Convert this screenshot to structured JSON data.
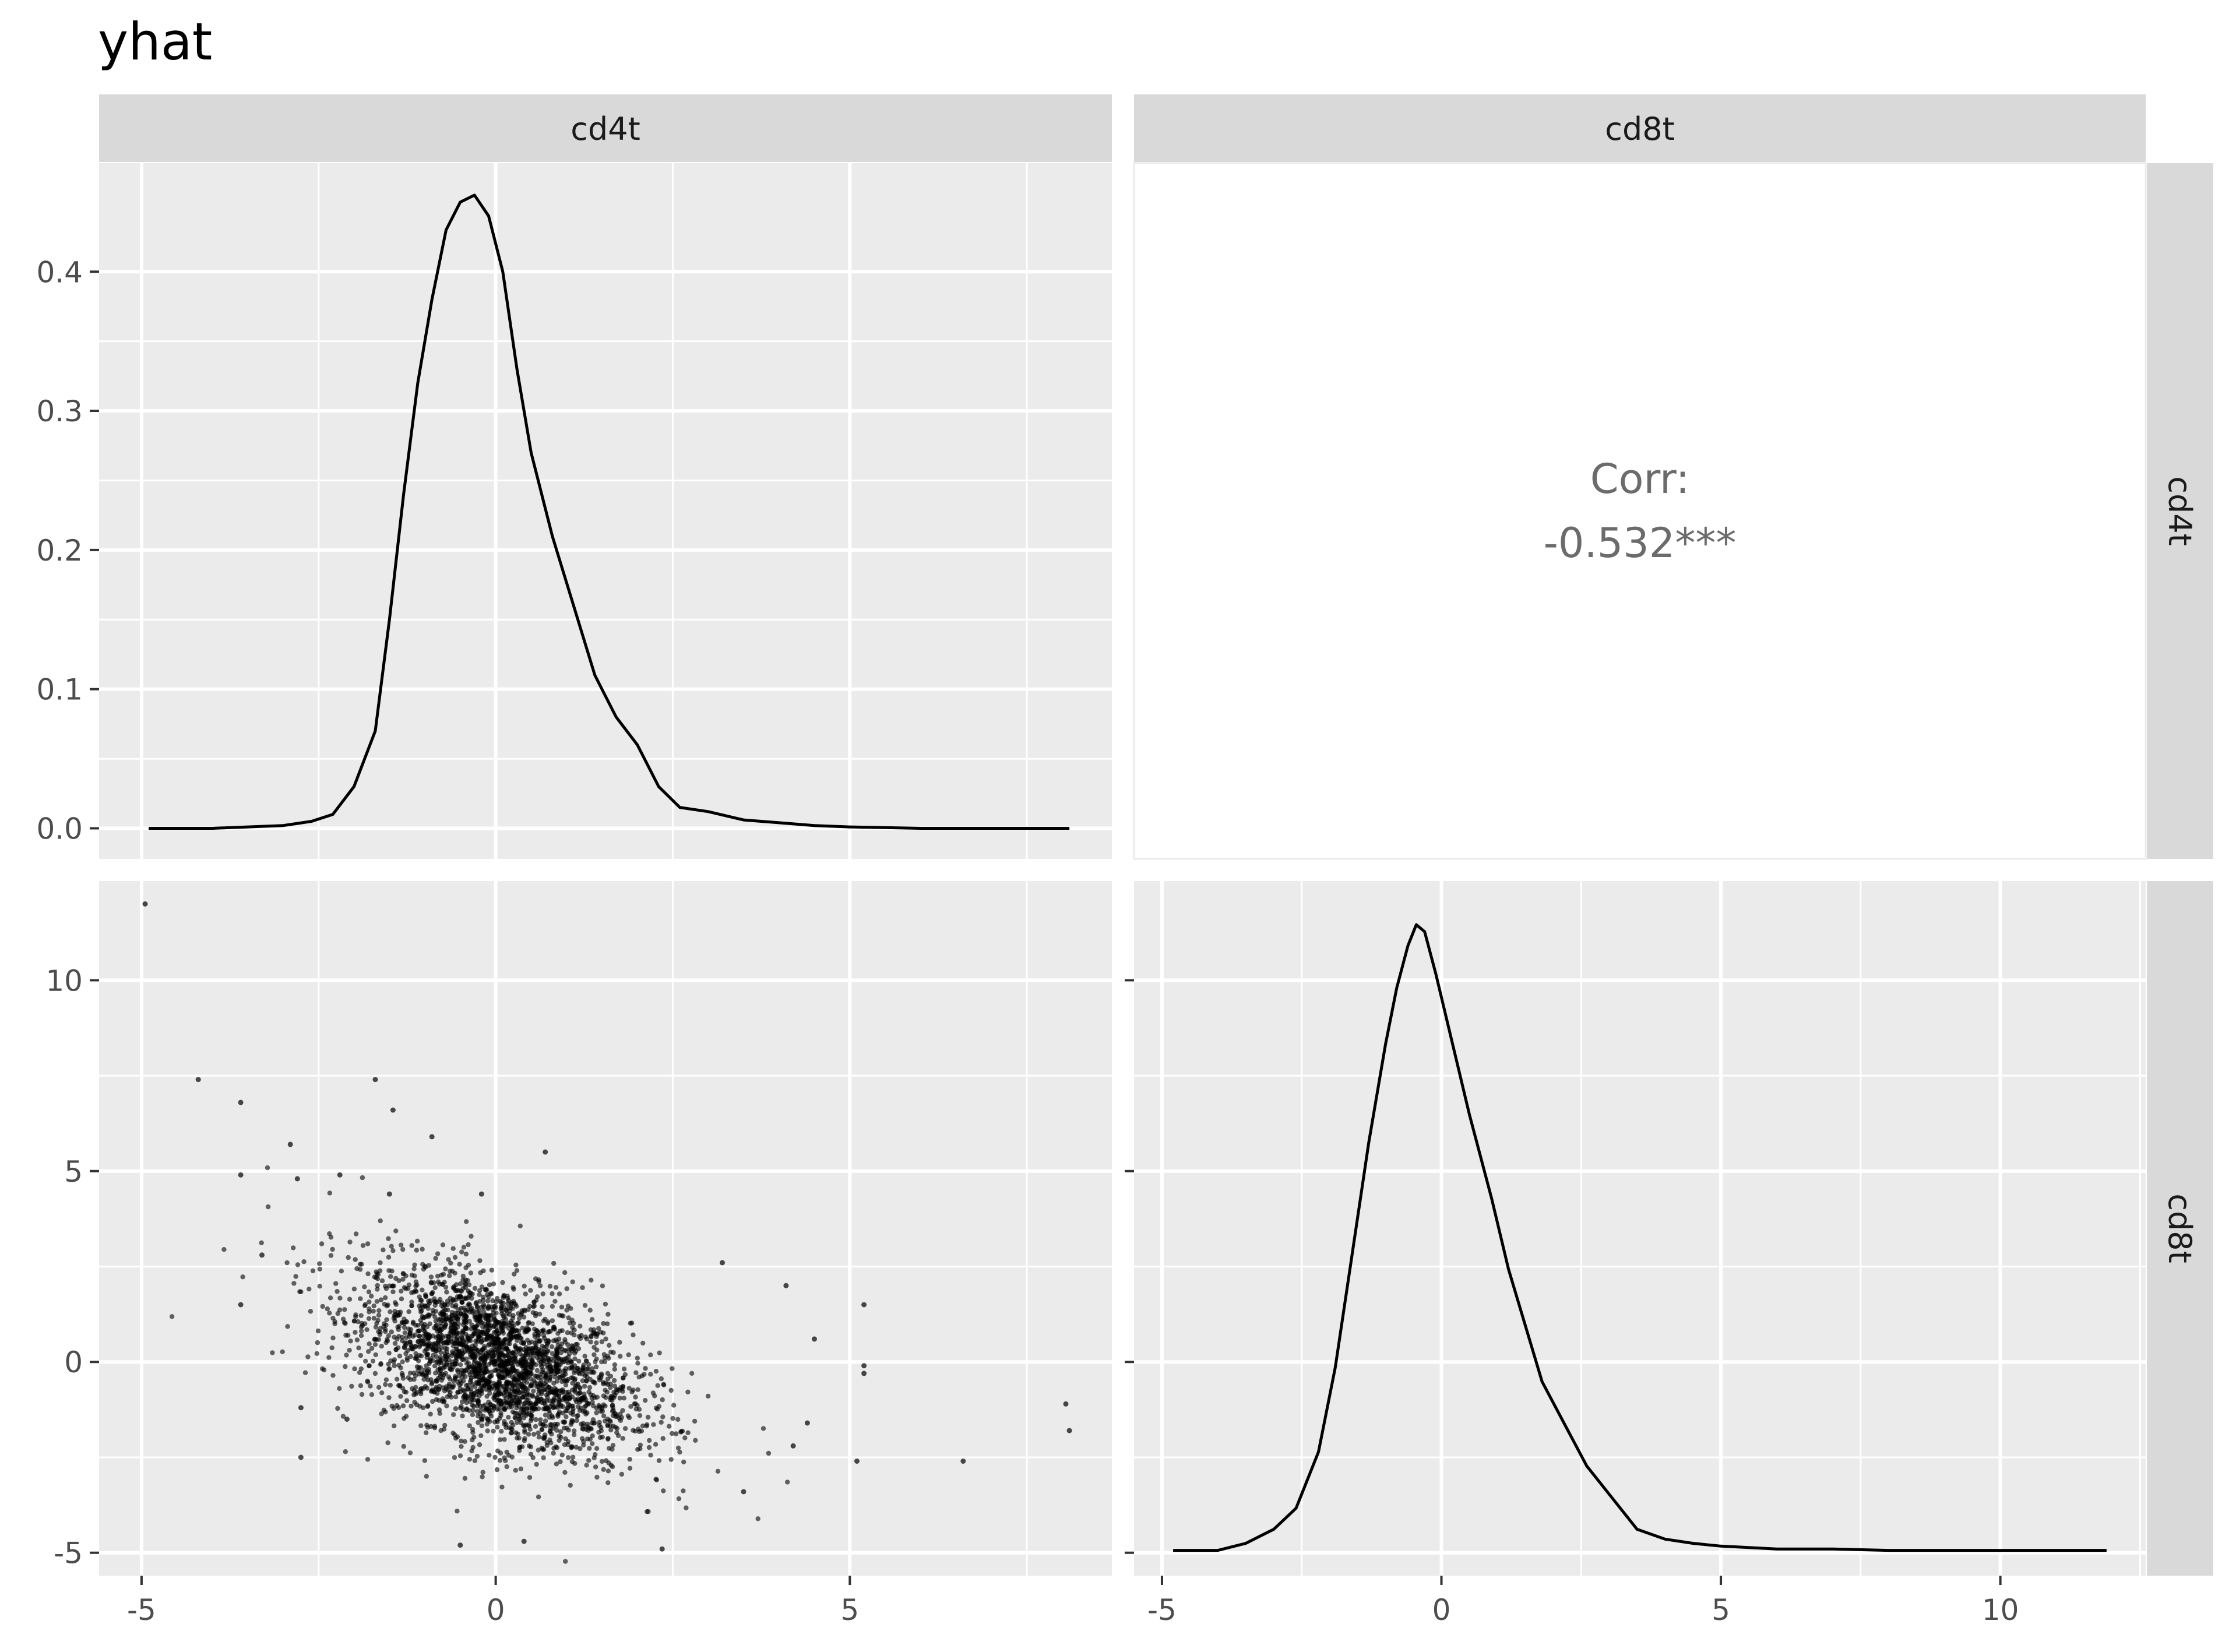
{
  "chart_data": {
    "type": "scatter-matrix",
    "title": "yhat",
    "variables": [
      "cd4t",
      "cd8t"
    ],
    "panels": {
      "cd4t_density": {
        "type": "line",
        "x_ticks": [
          -5,
          0,
          5
        ],
        "y_ticks": [
          0.0,
          0.1,
          0.2,
          0.3,
          0.4
        ],
        "y_tick_labels": [
          "0.0",
          "0.1",
          "0.2",
          "0.3",
          "0.4"
        ],
        "xlim": [
          -5.6,
          8.7
        ],
        "ylim": [
          -0.022,
          0.478
        ],
        "points": [
          [
            -4.9,
            0.0
          ],
          [
            -4.0,
            0.0
          ],
          [
            -3.5,
            0.001
          ],
          [
            -3.0,
            0.002
          ],
          [
            -2.6,
            0.005
          ],
          [
            -2.3,
            0.01
          ],
          [
            -2.0,
            0.03
          ],
          [
            -1.7,
            0.07
          ],
          [
            -1.5,
            0.15
          ],
          [
            -1.3,
            0.24
          ],
          [
            -1.1,
            0.32
          ],
          [
            -0.9,
            0.38
          ],
          [
            -0.7,
            0.43
          ],
          [
            -0.5,
            0.45
          ],
          [
            -0.3,
            0.455
          ],
          [
            -0.1,
            0.44
          ],
          [
            0.1,
            0.4
          ],
          [
            0.3,
            0.33
          ],
          [
            0.5,
            0.27
          ],
          [
            0.8,
            0.21
          ],
          [
            1.1,
            0.16
          ],
          [
            1.4,
            0.11
          ],
          [
            1.7,
            0.08
          ],
          [
            2.0,
            0.06
          ],
          [
            2.3,
            0.03
          ],
          [
            2.6,
            0.015
          ],
          [
            3.0,
            0.012
          ],
          [
            3.5,
            0.006
          ],
          [
            4.0,
            0.004
          ],
          [
            4.5,
            0.002
          ],
          [
            5.0,
            0.001
          ],
          [
            6.0,
            0.0
          ],
          [
            7.0,
            0.0
          ],
          [
            8.1,
            0.0
          ]
        ]
      },
      "correlation": {
        "label": "Corr:",
        "value": "-0.532***"
      },
      "scatter": {
        "type": "scatter",
        "x_ticks": [
          -5,
          0,
          5
        ],
        "y_ticks": [
          -5,
          0,
          5,
          10
        ],
        "xlim": [
          -5.6,
          8.7
        ],
        "ylim": [
          -5.6,
          12.6
        ],
        "center": [
          0,
          0
        ],
        "n_points": 2600,
        "slope": -0.55,
        "outliers": [
          [
            -4.95,
            12.0
          ],
          [
            -4.2,
            7.4
          ],
          [
            -3.6,
            6.8
          ],
          [
            -3.6,
            4.9
          ],
          [
            -3.6,
            1.5
          ],
          [
            -3.3,
            2.8
          ],
          [
            -2.9,
            5.7
          ],
          [
            -2.8,
            4.8
          ],
          [
            -2.75,
            -1.2
          ],
          [
            -2.75,
            -2.5
          ],
          [
            -1.7,
            7.4
          ],
          [
            -1.45,
            6.6
          ],
          [
            -0.9,
            5.9
          ],
          [
            0.7,
            5.5
          ],
          [
            -2.1,
            -1.5
          ],
          [
            -0.5,
            -4.8
          ],
          [
            0.4,
            -4.7
          ],
          [
            2.35,
            -4.9
          ],
          [
            3.2,
            2.6
          ],
          [
            4.1,
            2.0
          ],
          [
            4.5,
            0.6
          ],
          [
            5.2,
            1.5
          ],
          [
            5.2,
            -0.1
          ],
          [
            5.2,
            -0.3
          ],
          [
            5.1,
            -2.6
          ],
          [
            6.6,
            -2.6
          ],
          [
            8.05,
            -1.1
          ],
          [
            8.1,
            -1.8
          ],
          [
            4.2,
            -2.2
          ],
          [
            4.4,
            -1.6
          ],
          [
            3.5,
            -3.4
          ],
          [
            -1.5,
            4.4
          ],
          [
            -2.2,
            4.9
          ],
          [
            -0.2,
            4.4
          ]
        ]
      },
      "cd8t_density": {
        "type": "line",
        "x_ticks": [
          -5,
          0,
          5,
          10
        ],
        "xlim": [
          -5.5,
          12.6
        ],
        "points": [
          [
            -4.8,
            0.0
          ],
          [
            -4.0,
            0.0
          ],
          [
            -3.5,
            0.005
          ],
          [
            -3.0,
            0.015
          ],
          [
            -2.6,
            0.03
          ],
          [
            -2.2,
            0.07
          ],
          [
            -1.9,
            0.13
          ],
          [
            -1.6,
            0.21
          ],
          [
            -1.3,
            0.29
          ],
          [
            -1.0,
            0.36
          ],
          [
            -0.8,
            0.4
          ],
          [
            -0.6,
            0.43
          ],
          [
            -0.45,
            0.445
          ],
          [
            -0.3,
            0.44
          ],
          [
            -0.1,
            0.41
          ],
          [
            0.2,
            0.36
          ],
          [
            0.5,
            0.31
          ],
          [
            0.9,
            0.25
          ],
          [
            1.2,
            0.2
          ],
          [
            1.5,
            0.16
          ],
          [
            1.8,
            0.12
          ],
          [
            2.2,
            0.09
          ],
          [
            2.6,
            0.06
          ],
          [
            3.0,
            0.04
          ],
          [
            3.5,
            0.015
          ],
          [
            4.0,
            0.008
          ],
          [
            4.5,
            0.005
          ],
          [
            5.0,
            0.003
          ],
          [
            6.0,
            0.001
          ],
          [
            7.0,
            0.001
          ],
          [
            8.0,
            0.0
          ],
          [
            10.0,
            0.0
          ],
          [
            11.9,
            0.0
          ]
        ]
      }
    }
  }
}
